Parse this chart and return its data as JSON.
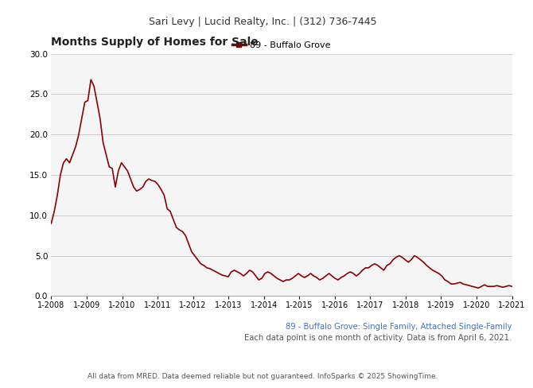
{
  "header": "Sari Levy | Lucid Realty, Inc. | (312) 736-7445",
  "title": "Months Supply of Homes for Sale",
  "legend_label": "89 - Buffalo Grove",
  "line_color": "#8B0000",
  "subtitle1": "89 - Buffalo Grove: Single Family, Attached Single-Family",
  "subtitle2": "Each data point is one month of activity. Data is from April 6, 2021.",
  "footer": "All data from MRED. Data deemed reliable but not guaranteed. InfoSparks © 2025 ShowingTime.",
  "subtitle_color": "#4472C4",
  "ylim": [
    0,
    30
  ],
  "yticks": [
    0.0,
    5.0,
    10.0,
    15.0,
    20.0,
    25.0,
    30.0
  ],
  "xtick_labels": [
    "1-2008",
    "1-2009",
    "1-2010",
    "1-2011",
    "1-2012",
    "1-2013",
    "1-2014",
    "1-2015",
    "1-2016",
    "1-2017",
    "1-2018",
    "1-2019",
    "1-2020",
    "1-2021"
  ],
  "values": [
    9.0,
    10.5,
    12.5,
    15.0,
    16.5,
    17.0,
    16.5,
    17.5,
    18.5,
    20.0,
    22.0,
    24.0,
    24.2,
    26.8,
    26.0,
    24.0,
    22.0,
    19.0,
    17.5,
    16.0,
    15.8,
    13.5,
    15.5,
    16.5,
    16.0,
    15.5,
    14.5,
    13.5,
    13.0,
    13.2,
    13.5,
    14.2,
    14.5,
    14.3,
    14.2,
    13.8,
    13.2,
    12.5,
    10.8,
    10.5,
    9.5,
    8.5,
    8.2,
    8.0,
    7.5,
    6.5,
    5.5,
    5.0,
    4.5,
    4.0,
    3.8,
    3.5,
    3.4,
    3.2,
    3.0,
    2.8,
    2.6,
    2.5,
    2.4,
    3.0,
    3.2,
    3.0,
    2.8,
    2.5,
    2.8,
    3.2,
    3.0,
    2.5,
    2.0,
    2.2,
    2.8,
    3.0,
    2.8,
    2.5,
    2.2,
    2.0,
    1.8,
    2.0,
    2.0,
    2.2,
    2.5,
    2.8,
    2.5,
    2.3,
    2.5,
    2.8,
    2.5,
    2.3,
    2.0,
    2.2,
    2.5,
    2.8,
    2.5,
    2.2,
    2.0,
    2.3,
    2.5,
    2.8,
    3.0,
    2.8,
    2.5,
    2.8,
    3.2,
    3.5,
    3.5,
    3.8,
    4.0,
    3.8,
    3.5,
    3.2,
    3.8,
    4.0,
    4.5,
    4.8,
    5.0,
    4.8,
    4.5,
    4.2,
    4.5,
    5.0,
    4.8,
    4.5,
    4.2,
    3.8,
    3.5,
    3.2,
    3.0,
    2.8,
    2.5,
    2.0,
    1.8,
    1.5,
    1.5,
    1.6,
    1.7,
    1.5,
    1.4,
    1.3,
    1.2,
    1.1,
    1.0,
    1.2,
    1.4,
    1.2,
    1.2,
    1.2,
    1.3,
    1.2,
    1.1,
    1.2,
    1.3,
    1.2
  ],
  "background_color": "#ffffff",
  "header_bg": "#e0e0e0",
  "plot_bg": "#f5f5f5"
}
